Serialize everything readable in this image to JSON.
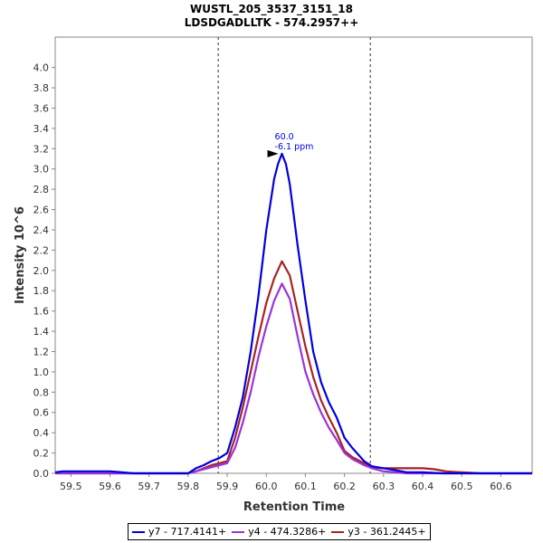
{
  "chart_data": {
    "type": "line",
    "title": "WUSTL_205_3537_3151_18",
    "subtitle": "LDSDGADLLTK - 574.2957++",
    "xlabel": "Retention Time",
    "ylabel": "Intensity 10^6",
    "xlim": [
      59.46,
      60.68
    ],
    "ylim": [
      0,
      4.3
    ],
    "x_ticks": [
      "59.5",
      "59.6",
      "59.7",
      "59.8",
      "59.9",
      "60.0",
      "60.1",
      "60.2",
      "60.3",
      "60.4",
      "60.5",
      "60.6"
    ],
    "y_ticks": [
      "0.0",
      "0.2",
      "0.4",
      "0.6",
      "0.8",
      "1.0",
      "1.2",
      "1.4",
      "1.6",
      "1.8",
      "2.0",
      "2.2",
      "2.4",
      "2.6",
      "2.8",
      "3.0",
      "3.2",
      "3.4",
      "3.6",
      "3.8",
      "4.0"
    ],
    "grid": false,
    "legend": "bottom",
    "boundary_lines": [
      59.877,
      60.266
    ],
    "series": [
      {
        "name": "y7 - 717.4141+",
        "color": "#0000dd",
        "x": [
          59.46,
          59.48,
          59.5,
          59.55,
          59.6,
          59.63,
          59.66,
          59.7,
          59.75,
          59.8,
          59.82,
          59.84,
          59.86,
          59.88,
          59.9,
          59.92,
          59.94,
          59.96,
          59.98,
          60.0,
          60.02,
          60.03,
          60.04,
          60.05,
          60.06,
          60.08,
          60.1,
          60.12,
          60.14,
          60.16,
          60.18,
          60.2,
          60.22,
          60.25,
          60.27,
          60.3,
          60.33,
          60.36,
          60.4,
          60.45,
          60.5,
          60.55,
          60.6,
          60.68
        ],
        "y": [
          0.01,
          0.02,
          0.02,
          0.02,
          0.02,
          0.01,
          0.0,
          0.0,
          0.0,
          0.0,
          0.05,
          0.08,
          0.12,
          0.15,
          0.2,
          0.45,
          0.75,
          1.2,
          1.75,
          2.4,
          2.9,
          3.05,
          3.15,
          3.05,
          2.85,
          2.25,
          1.7,
          1.2,
          0.9,
          0.7,
          0.55,
          0.35,
          0.25,
          0.12,
          0.07,
          0.05,
          0.03,
          0.01,
          0.01,
          0.0,
          0.0,
          0.0,
          0.0,
          0.0
        ]
      },
      {
        "name": "y4 - 474.3286+",
        "color": "#9933dd",
        "x": [
          59.46,
          59.8,
          59.82,
          59.84,
          59.86,
          59.88,
          59.9,
          59.92,
          59.94,
          59.96,
          59.98,
          60.0,
          60.02,
          60.04,
          60.06,
          60.08,
          60.1,
          60.12,
          60.14,
          60.16,
          60.18,
          60.2,
          60.22,
          60.25,
          60.27,
          60.3,
          60.33,
          60.36,
          60.4,
          60.45,
          60.5,
          60.55,
          60.6,
          60.68
        ],
        "y": [
          0.0,
          0.0,
          0.02,
          0.04,
          0.06,
          0.08,
          0.1,
          0.25,
          0.5,
          0.8,
          1.15,
          1.45,
          1.7,
          1.87,
          1.72,
          1.35,
          1.0,
          0.78,
          0.6,
          0.45,
          0.33,
          0.2,
          0.14,
          0.08,
          0.05,
          0.02,
          0.01,
          0.0,
          0.0,
          0.0,
          0.0,
          0.0,
          0.0,
          0.0
        ]
      },
      {
        "name": "y3 - 361.2445+",
        "color": "#aa2222",
        "x": [
          59.46,
          59.8,
          59.82,
          59.84,
          59.86,
          59.88,
          59.9,
          59.92,
          59.94,
          59.96,
          59.98,
          60.0,
          60.02,
          60.04,
          60.06,
          60.08,
          60.1,
          60.12,
          60.14,
          60.16,
          60.18,
          60.2,
          60.22,
          60.25,
          60.27,
          60.3,
          60.33,
          60.36,
          60.4,
          60.43,
          60.46,
          60.5,
          60.55,
          60.6,
          60.68
        ],
        "y": [
          0.0,
          0.0,
          0.02,
          0.05,
          0.08,
          0.1,
          0.12,
          0.35,
          0.65,
          1.0,
          1.35,
          1.68,
          1.92,
          2.09,
          1.95,
          1.6,
          1.25,
          0.95,
          0.72,
          0.55,
          0.4,
          0.22,
          0.16,
          0.1,
          0.06,
          0.05,
          0.05,
          0.05,
          0.05,
          0.04,
          0.02,
          0.01,
          0.0,
          0.0,
          0.0
        ]
      }
    ],
    "annotations": [
      {
        "text": "60.0",
        "x": 60.04,
        "y": 3.15,
        "color": "#0000dd"
      },
      {
        "text": "-6.1 ppm",
        "x": 60.04,
        "y": 3.15,
        "color": "#0000dd"
      }
    ]
  }
}
